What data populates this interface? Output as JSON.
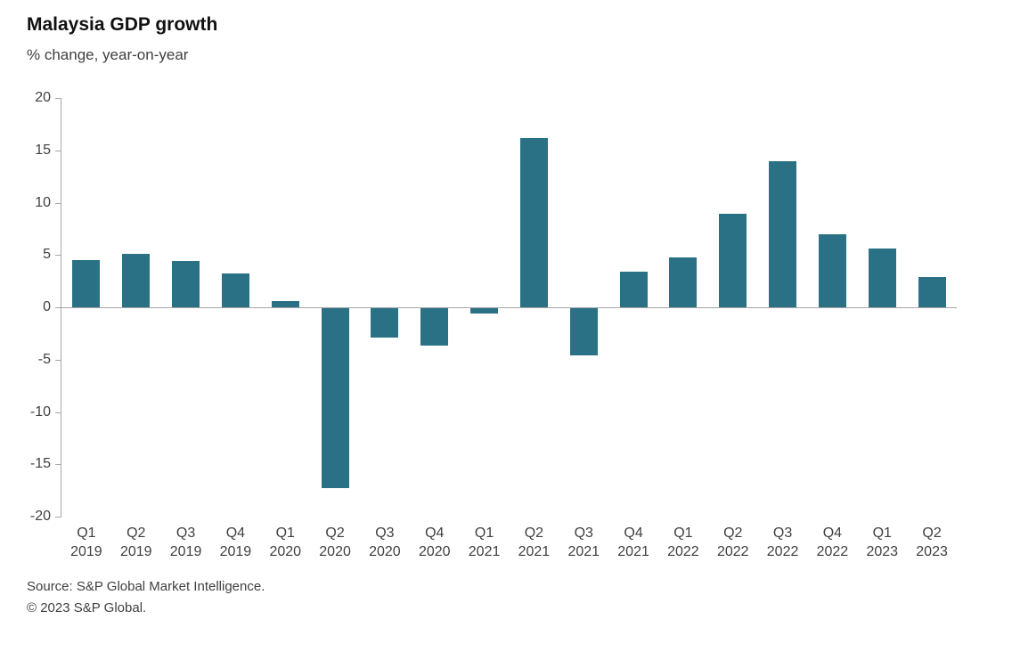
{
  "header": {
    "title": "Malaysia GDP growth",
    "subtitle": "% change, year-on-year"
  },
  "footer": {
    "source": "Source: S&P Global Market Intelligence.",
    "copyright": "© 2023 S&P Global."
  },
  "colors": {
    "bar": "#2b7186",
    "axis": "#a6a6a6",
    "text": "#404040"
  },
  "chart_data": {
    "type": "bar",
    "title": "Malaysia GDP growth",
    "subtitle": "% change, year-on-year",
    "xlabel": "",
    "ylabel": "% change, year-on-year",
    "categories": [
      "Q1 2019",
      "Q2 2019",
      "Q3 2019",
      "Q4 2019",
      "Q1 2020",
      "Q2 2020",
      "Q3 2020",
      "Q4 2020",
      "Q1 2021",
      "Q2 2021",
      "Q3 2021",
      "Q4 2021",
      "Q1 2022",
      "Q2 2022",
      "Q3 2022",
      "Q4 2022",
      "Q1 2023",
      "Q2 2023"
    ],
    "values": [
      4.5,
      5.1,
      4.4,
      3.2,
      0.6,
      -17.2,
      -2.8,
      -3.6,
      -0.5,
      16.2,
      -4.5,
      3.4,
      4.8,
      8.9,
      14.0,
      7.0,
      5.6,
      2.9
    ],
    "ylim": [
      -20,
      20
    ],
    "yticks": [
      20,
      15,
      10,
      5,
      0,
      -5,
      -10,
      -15,
      -20
    ],
    "grid": false,
    "legend_position": "none"
  }
}
